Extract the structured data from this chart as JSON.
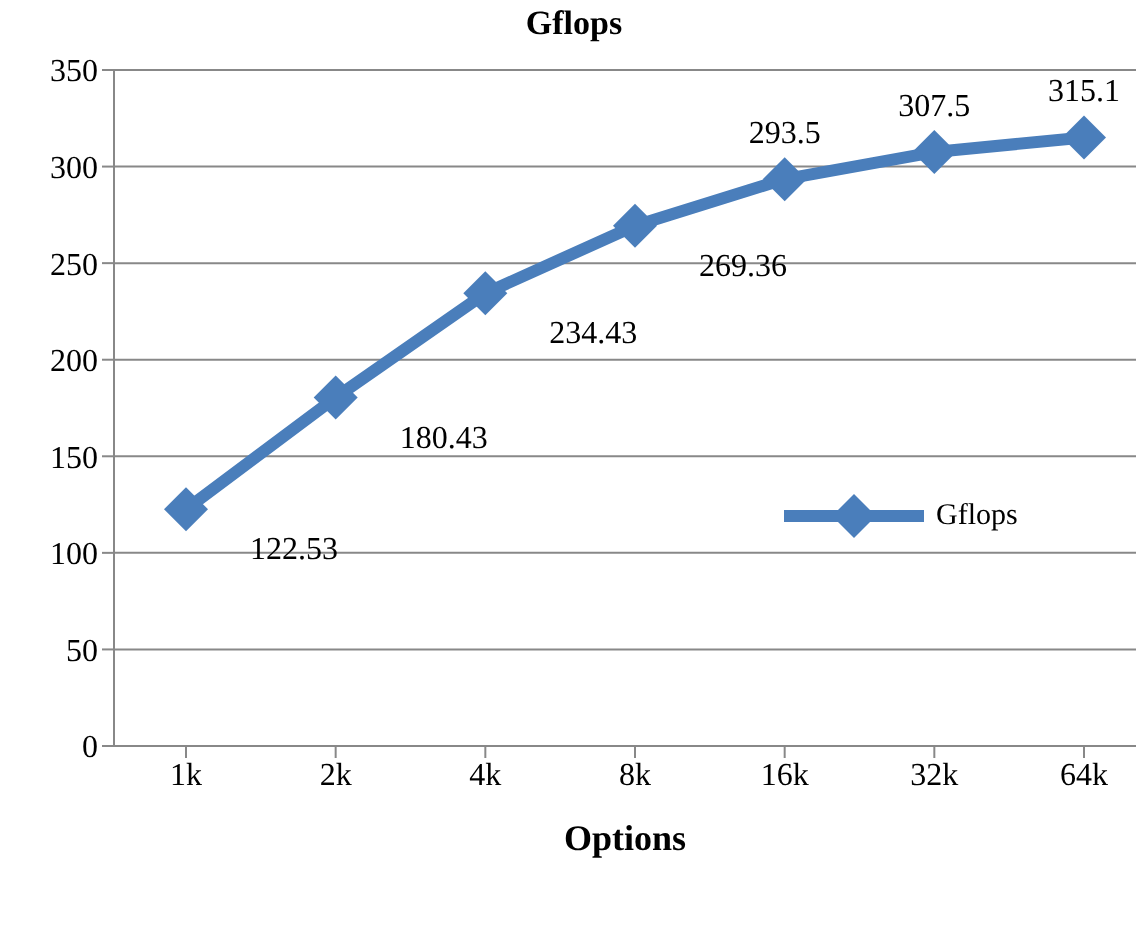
{
  "chart_data": {
    "type": "line",
    "title": "Gflops",
    "xlabel": "Options",
    "categories": [
      "1k",
      "2k",
      "4k",
      "8k",
      "16k",
      "32k",
      "64k"
    ],
    "series": [
      {
        "name": "Gflops",
        "color": "#4a7ebb",
        "values": [
          122.53,
          180.43,
          234.43,
          269.36,
          293.5,
          307.5,
          315.1
        ]
      }
    ],
    "ylim": [
      0,
      350
    ],
    "yticks": [
      0,
      50,
      100,
      150,
      200,
      250,
      300,
      350
    ],
    "grid": "y",
    "legend": "right",
    "marker": "diamond",
    "line_style": "solid",
    "data_labels": true
  }
}
